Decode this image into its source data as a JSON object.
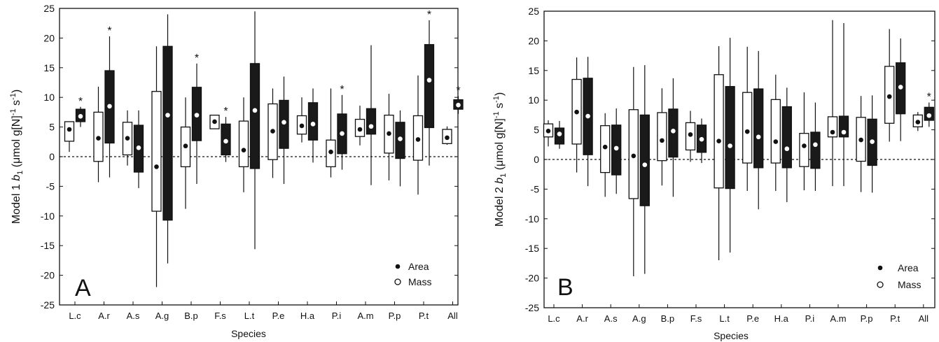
{
  "chart_data": [
    {
      "type": "box",
      "panel_label": "A",
      "xlabel": "Species",
      "ylabel": "Model 1 b1 (μmol g[N]-1 s-1)",
      "ylabel_parts": {
        "prefix": "Model 1 ",
        "var": "b",
        "sub": "1",
        "unit_open": " (μmol g[N]",
        "exp1": "-1",
        "mid": " s",
        "exp2": "-1",
        "close": ")"
      },
      "categories": [
        "L.c",
        "A.r",
        "A.s",
        "A.g",
        "B.p",
        "F.s",
        "L.t",
        "P.e",
        "H.a",
        "P.i",
        "A.m",
        "P.p",
        "P.t",
        "All"
      ],
      "ylim": [
        -25,
        25
      ],
      "yticks": [
        25,
        20,
        15,
        10,
        5,
        0,
        -5,
        -10,
        -15,
        -20,
        -25
      ],
      "ytick_labels": [
        "25",
        "20",
        "15",
        "10",
        "5",
        "0",
        "-5",
        "-10",
        "-15",
        "-20",
        "-25"
      ],
      "legend": {
        "position": "bottom-right",
        "entries": [
          "Area",
          "Mass"
        ]
      },
      "series": [
        {
          "name": "Mass",
          "fill": "#ffffff",
          "marker": "filled",
          "boxes": [
            {
              "wlo": 0.8,
              "q1": 2.6,
              "med": 4.6,
              "q3": 5.9,
              "whi": 5.9,
              "star": false
            },
            {
              "wlo": -4.3,
              "q1": -0.8,
              "med": 3.1,
              "q3": 7.5,
              "whi": 11.8,
              "star": false
            },
            {
              "wlo": -1.5,
              "q1": 0.3,
              "med": 3.1,
              "q3": 5.8,
              "whi": 7.8,
              "star": false
            },
            {
              "wlo": -22,
              "q1": -9.2,
              "med": -1.7,
              "q3": 11.0,
              "whi": 18.6,
              "star": false
            },
            {
              "wlo": -8.8,
              "q1": -1.7,
              "med": 1.8,
              "q3": 5.0,
              "whi": 10.0,
              "star": false
            },
            {
              "wlo": 4.7,
              "q1": 4.7,
              "med": 5.9,
              "q3": 7.0,
              "whi": 7.0,
              "star": false
            },
            {
              "wlo": -6.0,
              "q1": -1.7,
              "med": 1.1,
              "q3": 6.0,
              "whi": 10.0,
              "star": false
            },
            {
              "wlo": -3.6,
              "q1": -0.5,
              "med": 4.3,
              "q3": 8.9,
              "whi": 11.5,
              "star": false
            },
            {
              "wlo": 2.4,
              "q1": 3.8,
              "med": 5.2,
              "q3": 6.9,
              "whi": 10.0,
              "star": false
            },
            {
              "wlo": -3.5,
              "q1": -1.7,
              "med": 0.8,
              "q3": 2.8,
              "whi": 11.5,
              "star": false
            },
            {
              "wlo": 1.9,
              "q1": 3.4,
              "med": 4.6,
              "q3": 6.3,
              "whi": 8.6,
              "star": false
            },
            {
              "wlo": -4.0,
              "q1": 0.6,
              "med": 3.9,
              "q3": 7.0,
              "whi": 10.6,
              "star": false
            },
            {
              "wlo": -6.4,
              "q1": -0.6,
              "med": 2.9,
              "q3": 6.9,
              "whi": 13.7,
              "star": false
            },
            {
              "wlo": 2.0,
              "q1": 2.2,
              "med": 3.2,
              "q3": 4.6,
              "whi": 5.1,
              "star": false
            }
          ]
        },
        {
          "name": "Area",
          "fill": "#1a1a1a",
          "marker": "open",
          "boxes": [
            {
              "wlo": 5.0,
              "q1": 5.9,
              "med": 6.8,
              "q3": 8.0,
              "whi": 8.4,
              "star": true
            },
            {
              "wlo": -3.5,
              "q1": 2.3,
              "med": 8.5,
              "q3": 14.5,
              "whi": 20.3,
              "star": true
            },
            {
              "wlo": -5.3,
              "q1": -2.6,
              "med": 1.5,
              "q3": 5.3,
              "whi": 7.8,
              "star": false
            },
            {
              "wlo": -18,
              "q1": -10.7,
              "med": 7.0,
              "q3": 18.6,
              "whi": 24.0,
              "star": false
            },
            {
              "wlo": -4.6,
              "q1": 2.7,
              "med": 7.0,
              "q3": 11.7,
              "whi": 15.7,
              "star": true
            },
            {
              "wlo": -0.9,
              "q1": 0.3,
              "med": 2.6,
              "q3": 5.5,
              "whi": 6.7,
              "star": true
            },
            {
              "wlo": -15.6,
              "q1": -2.0,
              "med": 7.8,
              "q3": 15.7,
              "whi": 24.5,
              "star": false
            },
            {
              "wlo": -4.6,
              "q1": 1.4,
              "med": 5.8,
              "q3": 9.5,
              "whi": 13.5,
              "star": false
            },
            {
              "wlo": -1.0,
              "q1": 2.8,
              "med": 5.5,
              "q3": 9.1,
              "whi": 11.5,
              "star": false
            },
            {
              "wlo": -2.2,
              "q1": 0.5,
              "med": 3.9,
              "q3": 7.2,
              "whi": 10.4,
              "star": true
            },
            {
              "wlo": -4.8,
              "q1": 3.8,
              "med": 5.1,
              "q3": 8.1,
              "whi": 18.8,
              "star": false
            },
            {
              "wlo": -5.0,
              "q1": -0.3,
              "med": 3.0,
              "q3": 5.8,
              "whi": 7.8,
              "star": false
            },
            {
              "wlo": -1.5,
              "q1": 4.9,
              "med": 12.9,
              "q3": 18.9,
              "whi": 23.0,
              "star": true
            },
            {
              "wlo": 7.2,
              "q1": 8.0,
              "med": 8.7,
              "q3": 9.6,
              "whi": 10.2,
              "star": true
            }
          ]
        }
      ]
    },
    {
      "type": "box",
      "panel_label": "B",
      "xlabel": "Species",
      "ylabel": "Model 2 b1 (μmol g[N]-1 s-1)",
      "ylabel_parts": {
        "prefix": "Model 2 ",
        "var": "b",
        "sub": "1",
        "unit_open": " (μmol g[N]",
        "exp1": "-1",
        "mid": " s",
        "exp2": "-1",
        "close": ")"
      },
      "categories": [
        "L.c",
        "A.r",
        "A.s",
        "A.g",
        "B.p",
        "F.s",
        "L.t",
        "P.e",
        "H.a",
        "P.i",
        "A.m",
        "P.p",
        "P.t",
        "All"
      ],
      "ylim": [
        -25,
        25
      ],
      "yticks": [
        25,
        20,
        15,
        10,
        5,
        0,
        -5,
        -10,
        -15,
        -20,
        -25
      ],
      "ytick_labels": [
        "25",
        "20",
        "15",
        "10",
        "5",
        "0",
        "-5",
        "-10",
        "-15",
        "-20",
        "-25"
      ],
      "legend": {
        "position": "bottom-right",
        "entries": [
          "Area",
          "Mass"
        ]
      },
      "series": [
        {
          "name": "Mass",
          "fill": "#ffffff",
          "marker": "filled",
          "boxes": [
            {
              "wlo": 2.2,
              "q1": 3.8,
              "med": 4.8,
              "q3": 6.0,
              "whi": 6.6,
              "star": false
            },
            {
              "wlo": -2.2,
              "q1": 2.6,
              "med": 8.0,
              "q3": 13.5,
              "whi": 17.2,
              "star": false
            },
            {
              "wlo": -6.3,
              "q1": -2.2,
              "med": 2.1,
              "q3": 5.7,
              "whi": 7.8,
              "star": false
            },
            {
              "wlo": -19.7,
              "q1": -6.6,
              "med": 0.6,
              "q3": 8.4,
              "whi": 15.6,
              "star": false
            },
            {
              "wlo": -4.4,
              "q1": -0.2,
              "med": 3.2,
              "q3": 7.9,
              "whi": 12.0,
              "star": false
            },
            {
              "wlo": -0.4,
              "q1": 1.6,
              "med": 4.2,
              "q3": 6.2,
              "whi": 8.2,
              "star": false
            },
            {
              "wlo": -17,
              "q1": -4.8,
              "med": 3.1,
              "q3": 14.3,
              "whi": 19.1,
              "star": false
            },
            {
              "wlo": -5.3,
              "q1": -0.6,
              "med": 4.7,
              "q3": 11.3,
              "whi": 19.0,
              "star": false
            },
            {
              "wlo": -5.3,
              "q1": -0.6,
              "med": 3.0,
              "q3": 10.1,
              "whi": 14.3,
              "star": false
            },
            {
              "wlo": -5.2,
              "q1": -1.2,
              "med": 2.3,
              "q3": 4.4,
              "whi": 11.3,
              "star": false
            },
            {
              "wlo": -4.5,
              "q1": 3.8,
              "med": 4.6,
              "q3": 7.2,
              "whi": 23.5,
              "star": false
            },
            {
              "wlo": -5.5,
              "q1": -0.3,
              "med": 3.3,
              "q3": 7.1,
              "whi": 10.7,
              "star": false
            },
            {
              "wlo": 3.0,
              "q1": 6.1,
              "med": 10.6,
              "q3": 15.7,
              "whi": 22.0,
              "star": false
            },
            {
              "wlo": 4.8,
              "q1": 5.5,
              "med": 6.3,
              "q3": 7.5,
              "whi": 8.0,
              "star": false
            }
          ]
        },
        {
          "name": "Area",
          "fill": "#1a1a1a",
          "marker": "open",
          "boxes": [
            {
              "wlo": 1.8,
              "q1": 2.6,
              "med": 4.3,
              "q3": 5.3,
              "whi": 6.5,
              "star": false
            },
            {
              "wlo": -4.5,
              "q1": 0.8,
              "med": 7.3,
              "q3": 13.7,
              "whi": 17.3,
              "star": false
            },
            {
              "wlo": -5.8,
              "q1": -2.6,
              "med": 1.9,
              "q3": 5.8,
              "whi": 8.6,
              "star": false
            },
            {
              "wlo": -19.3,
              "q1": -7.8,
              "med": -0.9,
              "q3": 7.5,
              "whi": 15.9,
              "star": false
            },
            {
              "wlo": -6.3,
              "q1": 0.4,
              "med": 4.8,
              "q3": 8.5,
              "whi": 13.7,
              "star": false
            },
            {
              "wlo": -0.6,
              "q1": 1.2,
              "med": 3.4,
              "q3": 5.8,
              "whi": 6.9,
              "star": false
            },
            {
              "wlo": -15.7,
              "q1": -4.9,
              "med": 2.3,
              "q3": 12.3,
              "whi": 20.5,
              "star": false
            },
            {
              "wlo": -8.4,
              "q1": -1.4,
              "med": 3.8,
              "q3": 11.9,
              "whi": 18.3,
              "star": false
            },
            {
              "wlo": -7.2,
              "q1": -1.4,
              "med": 1.8,
              "q3": 8.9,
              "whi": 12.1,
              "star": false
            },
            {
              "wlo": -5.3,
              "q1": -1.5,
              "med": 2.5,
              "q3": 4.6,
              "whi": 9.6,
              "star": false
            },
            {
              "wlo": -4.5,
              "q1": 3.8,
              "med": 4.6,
              "q3": 7.3,
              "whi": 23.0,
              "star": false
            },
            {
              "wlo": -5.6,
              "q1": -1.0,
              "med": 3.0,
              "q3": 6.8,
              "whi": 10.8,
              "star": false
            },
            {
              "wlo": 3.1,
              "q1": 7.7,
              "med": 12.2,
              "q3": 16.3,
              "whi": 20.4,
              "star": false
            },
            {
              "wlo": 5.5,
              "q1": 6.6,
              "med": 7.4,
              "q3": 8.8,
              "whi": 9.6,
              "star": true
            }
          ]
        }
      ]
    }
  ]
}
